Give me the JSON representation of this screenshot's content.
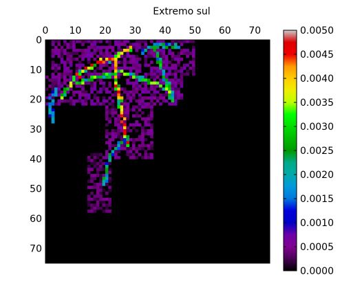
{
  "chart_data": {
    "type": "heatmap",
    "title": "Extremo sul",
    "colormap": "nipy_spectral",
    "origin": "upper",
    "grid_size": [
      75,
      75
    ],
    "x_ticks": [
      0,
      10,
      20,
      30,
      40,
      50,
      60,
      70
    ],
    "x_tick_labels": [
      "0",
      "10",
      "20",
      "30",
      "40",
      "50",
      "60",
      "70"
    ],
    "x_ticks_position": "top",
    "y_ticks": [
      0,
      10,
      20,
      30,
      40,
      50,
      60,
      70
    ],
    "y_tick_labels": [
      "0",
      "10",
      "20",
      "30",
      "40",
      "50",
      "60",
      "70"
    ],
    "xlim": [
      0,
      75
    ],
    "ylim": [
      75,
      0
    ],
    "colorbar": {
      "range": [
        0.0,
        0.005
      ],
      "ticks": [
        0.0,
        0.0005,
        0.001,
        0.0015,
        0.002,
        0.0025,
        0.003,
        0.0035,
        0.004,
        0.0045,
        0.005
      ],
      "tick_labels": [
        "0.0000",
        "0.0005",
        "0.0010",
        "0.0015",
        "0.0020",
        "0.0025",
        "0.0030",
        "0.0035",
        "0.0040",
        "0.0045",
        "0.0050"
      ]
    },
    "regions": [
      {
        "x_range": [
          2,
          50
        ],
        "y_range": [
          0,
          12
        ],
        "typical": 0.0006
      },
      {
        "x_range": [
          0,
          46
        ],
        "y_range": [
          12,
          22
        ],
        "typical": 0.0006
      },
      {
        "x_range": [
          20,
          36
        ],
        "y_range": [
          22,
          40
        ],
        "typical": 0.0005
      },
      {
        "x_range": [
          14,
          22
        ],
        "y_range": [
          38,
          58
        ],
        "typical": 0.0004
      }
    ],
    "ridges": [
      {
        "points": [
          [
            5,
            19
          ],
          [
            8,
            14
          ],
          [
            12,
            10
          ],
          [
            17,
            7
          ],
          [
            22,
            6
          ],
          [
            25,
            4
          ],
          [
            28,
            2
          ]
        ],
        "peak": 0.0045
      },
      {
        "points": [
          [
            23,
            6
          ],
          [
            23,
            12
          ],
          [
            24,
            18
          ],
          [
            25,
            24
          ],
          [
            26,
            30
          ],
          [
            27,
            35
          ]
        ],
        "peak": 0.0045
      },
      {
        "points": [
          [
            24,
            10
          ],
          [
            30,
            12
          ],
          [
            36,
            14
          ],
          [
            42,
            17
          ]
        ],
        "peak": 0.0035
      },
      {
        "points": [
          [
            10,
            14
          ],
          [
            16,
            12
          ],
          [
            22,
            11
          ]
        ],
        "peak": 0.0035
      },
      {
        "points": [
          [
            36,
            2
          ],
          [
            38,
            8
          ],
          [
            40,
            14
          ],
          [
            42,
            20
          ]
        ],
        "peak": 0.003
      },
      {
        "points": [
          [
            26,
            33
          ],
          [
            22,
            37
          ],
          [
            20,
            42
          ],
          [
            19,
            48
          ]
        ],
        "peak": 0.0025
      },
      {
        "points": [
          [
            32,
            4
          ],
          [
            34,
            2
          ],
          [
            38,
            1
          ],
          [
            44,
            2
          ]
        ],
        "peak": 0.0025
      },
      {
        "points": [
          [
            3,
            16
          ],
          [
            1,
            21
          ],
          [
            2,
            27
          ]
        ],
        "peak": 0.002
      }
    ]
  }
}
